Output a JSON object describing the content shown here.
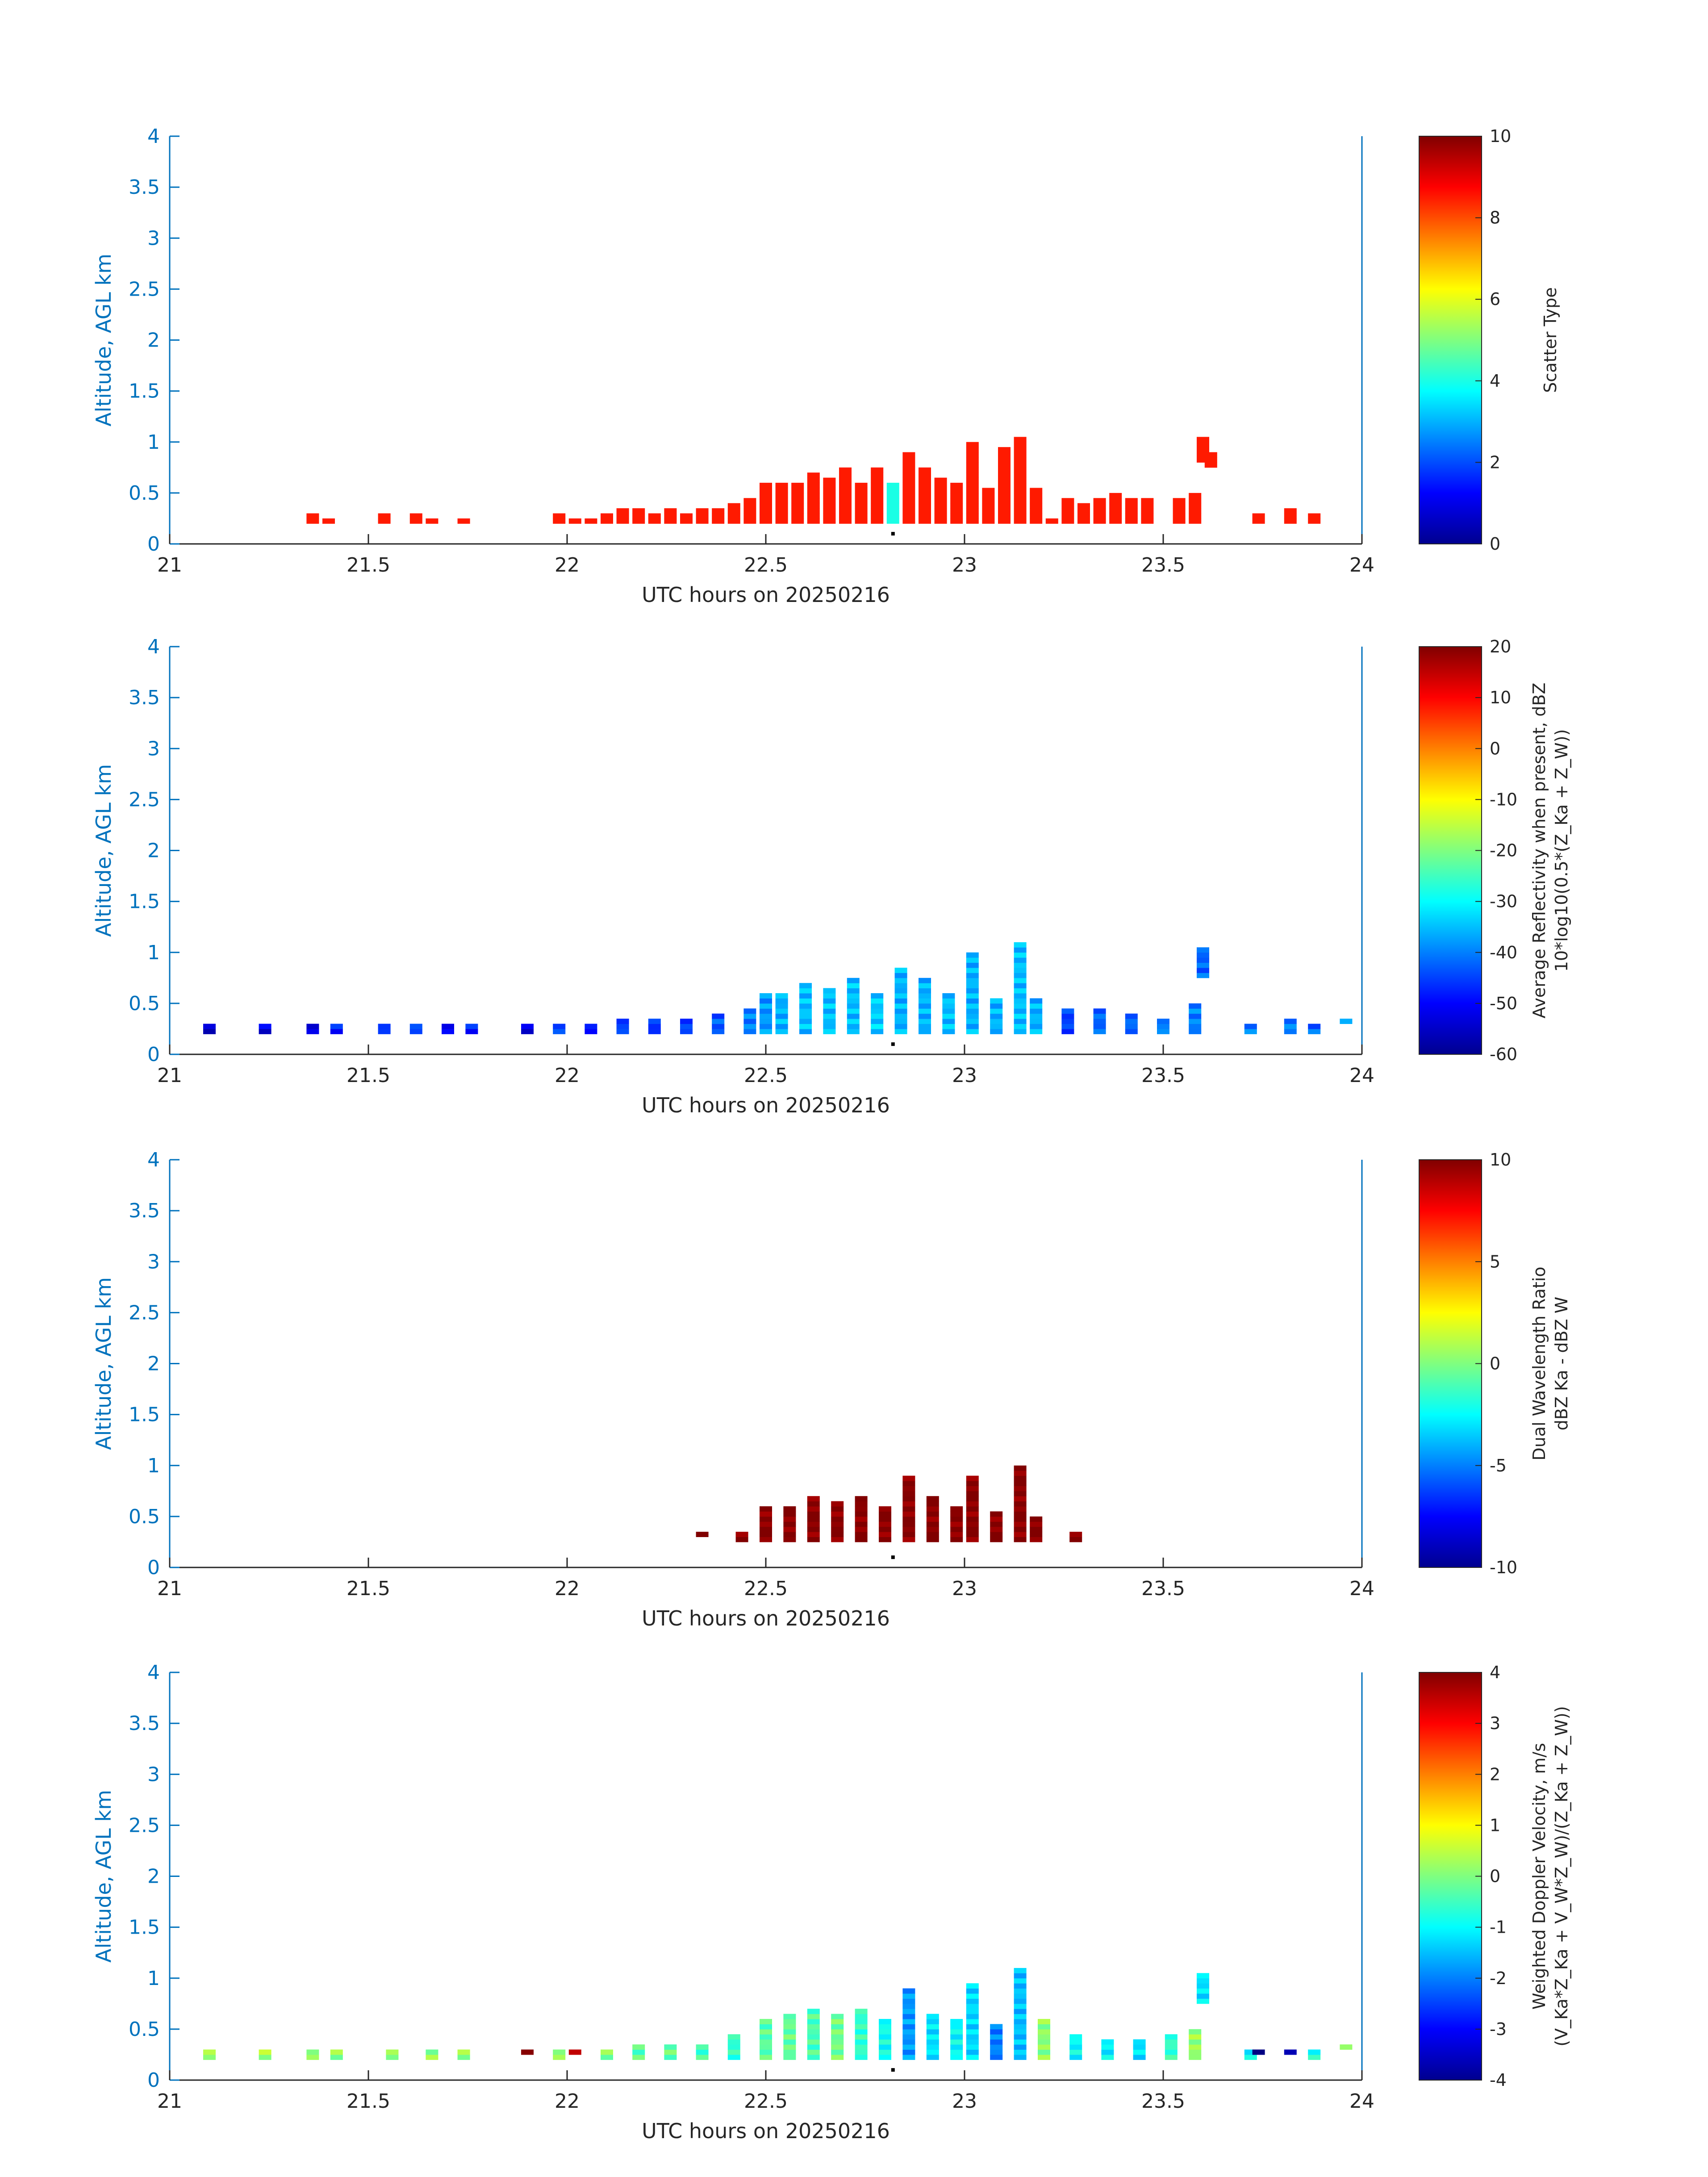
{
  "colors": {
    "axis": "#0072bd",
    "text": "#262626",
    "frame": "#0072bd"
  },
  "chart_data": [
    {
      "type": "heatmap",
      "name": "scatter-type",
      "xlabel": "UTC hours on 20250216",
      "ylabel": "Altitude, AGL km",
      "xlim": [
        21,
        24
      ],
      "ylim": [
        0,
        4
      ],
      "xticks": [
        "21",
        "21.5",
        "22",
        "22.5",
        "23",
        "23.5",
        "24"
      ],
      "yticks": [
        "0",
        "0.5",
        "1",
        "1.5",
        "2",
        "2.5",
        "3",
        "3.5",
        "4"
      ],
      "colorbar": {
        "label": "Scatter Type",
        "ticks": [
          "0",
          "2",
          "4",
          "6",
          "8",
          "10"
        ],
        "range": [
          0,
          10
        ]
      },
      "columns": [
        [
          21.36,
          0.2,
          0.3,
          8.5
        ],
        [
          21.4,
          0.2,
          0.25,
          8.5
        ],
        [
          21.54,
          0.2,
          0.3,
          8.5
        ],
        [
          21.62,
          0.2,
          0.3,
          8.5
        ],
        [
          21.66,
          0.2,
          0.25,
          8.5
        ],
        [
          21.74,
          0.2,
          0.25,
          8.5
        ],
        [
          21.98,
          0.2,
          0.3,
          8.5
        ],
        [
          22.02,
          0.2,
          0.25,
          8.5
        ],
        [
          22.06,
          0.2,
          0.25,
          8.5
        ],
        [
          22.1,
          0.2,
          0.3,
          8.5
        ],
        [
          22.14,
          0.2,
          0.35,
          8.5
        ],
        [
          22.18,
          0.2,
          0.35,
          8.5
        ],
        [
          22.22,
          0.2,
          0.3,
          8.5
        ],
        [
          22.26,
          0.2,
          0.35,
          8.5
        ],
        [
          22.3,
          0.2,
          0.3,
          8.5
        ],
        [
          22.34,
          0.2,
          0.35,
          8.5
        ],
        [
          22.38,
          0.2,
          0.35,
          8.5
        ],
        [
          22.42,
          0.2,
          0.4,
          8.5
        ],
        [
          22.46,
          0.2,
          0.45,
          8.5
        ],
        [
          22.5,
          0.2,
          0.6,
          8.5
        ],
        [
          22.54,
          0.2,
          0.6,
          8.5
        ],
        [
          22.58,
          0.2,
          0.6,
          8.5
        ],
        [
          22.62,
          0.2,
          0.7,
          8.5
        ],
        [
          22.66,
          0.2,
          0.65,
          8.5
        ],
        [
          22.7,
          0.2,
          0.75,
          8.5
        ],
        [
          22.74,
          0.2,
          0.6,
          8.5
        ],
        [
          22.78,
          0.2,
          0.75,
          8.5
        ],
        [
          22.82,
          0.2,
          0.6,
          4.0
        ],
        [
          22.86,
          0.2,
          0.9,
          8.5
        ],
        [
          22.9,
          0.2,
          0.75,
          8.5
        ],
        [
          22.94,
          0.2,
          0.65,
          8.5
        ],
        [
          22.98,
          0.2,
          0.6,
          8.5
        ],
        [
          23.02,
          0.2,
          1.0,
          8.5
        ],
        [
          23.06,
          0.2,
          0.55,
          8.5
        ],
        [
          23.1,
          0.2,
          0.95,
          8.5
        ],
        [
          23.14,
          0.2,
          1.05,
          8.5
        ],
        [
          23.18,
          0.2,
          0.55,
          8.5
        ],
        [
          23.22,
          0.2,
          0.25,
          8.5
        ],
        [
          23.26,
          0.2,
          0.45,
          8.5
        ],
        [
          23.3,
          0.2,
          0.4,
          8.5
        ],
        [
          23.34,
          0.2,
          0.45,
          8.5
        ],
        [
          23.38,
          0.2,
          0.5,
          8.5
        ],
        [
          23.42,
          0.2,
          0.45,
          8.5
        ],
        [
          23.46,
          0.2,
          0.45,
          8.5
        ],
        [
          23.54,
          0.2,
          0.45,
          8.5
        ],
        [
          23.58,
          0.2,
          0.5,
          8.5
        ],
        [
          23.6,
          0.8,
          1.05,
          8.5
        ],
        [
          23.62,
          0.75,
          0.9,
          8.5
        ],
        [
          23.74,
          0.2,
          0.3,
          8.5
        ],
        [
          23.82,
          0.2,
          0.35,
          8.5
        ],
        [
          23.88,
          0.2,
          0.3,
          8.5
        ]
      ]
    },
    {
      "type": "heatmap",
      "name": "average-reflectivity",
      "xlabel": "UTC hours on 20250216",
      "ylabel": "Altitude, AGL km",
      "xlim": [
        21,
        24
      ],
      "ylim": [
        0,
        4
      ],
      "xticks": [
        "21",
        "21.5",
        "22",
        "22.5",
        "23",
        "23.5",
        "24"
      ],
      "yticks": [
        "0",
        "0.5",
        "1",
        "1.5",
        "2",
        "2.5",
        "3",
        "3.5",
        "4"
      ],
      "colorbar": {
        "label": "Average Reflectivity when present, dBZ",
        "label2": "10*log10(0.5*(Z_Ka + Z_W))",
        "ticks": [
          "-60",
          "-50",
          "-40",
          "-30",
          "-20",
          "-10",
          "0",
          "10",
          "20"
        ],
        "range": [
          -60,
          20
        ]
      },
      "columns": [
        [
          21.1,
          0.2,
          0.3,
          -55
        ],
        [
          21.24,
          0.2,
          0.3,
          -52
        ],
        [
          21.36,
          0.2,
          0.3,
          -52
        ],
        [
          21.42,
          0.2,
          0.3,
          -48
        ],
        [
          21.54,
          0.2,
          0.3,
          -45
        ],
        [
          21.62,
          0.2,
          0.3,
          -45
        ],
        [
          21.7,
          0.2,
          0.3,
          -50
        ],
        [
          21.76,
          0.2,
          0.3,
          -48
        ],
        [
          21.9,
          0.2,
          0.3,
          -52
        ],
        [
          21.98,
          0.2,
          0.3,
          -45
        ],
        [
          22.06,
          0.2,
          0.3,
          -48
        ],
        [
          22.14,
          0.2,
          0.35,
          -45
        ],
        [
          22.22,
          0.2,
          0.35,
          -46
        ],
        [
          22.3,
          0.2,
          0.35,
          -45
        ],
        [
          22.38,
          0.2,
          0.4,
          -43
        ],
        [
          22.46,
          0.2,
          0.45,
          -40
        ],
        [
          22.5,
          0.2,
          0.6,
          -38
        ],
        [
          22.54,
          0.2,
          0.6,
          -36
        ],
        [
          22.6,
          0.2,
          0.7,
          -35
        ],
        [
          22.66,
          0.2,
          0.65,
          -35
        ],
        [
          22.72,
          0.2,
          0.75,
          -35
        ],
        [
          22.78,
          0.2,
          0.6,
          -34
        ],
        [
          22.84,
          0.2,
          0.85,
          -36
        ],
        [
          22.9,
          0.2,
          0.75,
          -36
        ],
        [
          22.96,
          0.2,
          0.6,
          -35
        ],
        [
          23.02,
          0.2,
          1.0,
          -36
        ],
        [
          23.08,
          0.2,
          0.55,
          -36
        ],
        [
          23.14,
          0.2,
          1.1,
          -35
        ],
        [
          23.18,
          0.2,
          0.55,
          -36
        ],
        [
          23.26,
          0.2,
          0.45,
          -45
        ],
        [
          23.34,
          0.2,
          0.45,
          -42
        ],
        [
          23.42,
          0.2,
          0.4,
          -42
        ],
        [
          23.5,
          0.2,
          0.35,
          -40
        ],
        [
          23.58,
          0.2,
          0.5,
          -40
        ],
        [
          23.6,
          0.75,
          1.05,
          -42
        ],
        [
          23.72,
          0.2,
          0.3,
          -40
        ],
        [
          23.82,
          0.2,
          0.35,
          -40
        ],
        [
          23.88,
          0.2,
          0.3,
          -42
        ],
        [
          23.96,
          0.3,
          0.35,
          -34
        ]
      ]
    },
    {
      "type": "heatmap",
      "name": "dual-wavelength-ratio",
      "xlabel": "UTC hours on 20250216",
      "ylabel": "Altitude, AGL km",
      "xlim": [
        21,
        24
      ],
      "ylim": [
        0,
        4
      ],
      "xticks": [
        "21",
        "21.5",
        "22",
        "22.5",
        "23",
        "23.5",
        "24"
      ],
      "yticks": [
        "0",
        "0.5",
        "1",
        "1.5",
        "2",
        "2.5",
        "3",
        "3.5",
        "4"
      ],
      "colorbar": {
        "label": "Dual Wavelength Ratio",
        "label2": "dBZ Ka - dBZ W",
        "ticks": [
          "-10",
          "-5",
          "0",
          "5",
          "10"
        ],
        "range": [
          -10,
          10
        ]
      },
      "columns": [
        [
          22.34,
          0.3,
          0.35,
          10
        ],
        [
          22.44,
          0.25,
          0.35,
          10
        ],
        [
          22.5,
          0.25,
          0.6,
          10
        ],
        [
          22.56,
          0.25,
          0.6,
          10
        ],
        [
          22.62,
          0.25,
          0.7,
          10
        ],
        [
          22.68,
          0.25,
          0.65,
          10
        ],
        [
          22.74,
          0.25,
          0.7,
          10
        ],
        [
          22.8,
          0.25,
          0.6,
          10
        ],
        [
          22.86,
          0.25,
          0.9,
          10
        ],
        [
          22.92,
          0.25,
          0.7,
          10
        ],
        [
          22.98,
          0.25,
          0.6,
          10
        ],
        [
          23.02,
          0.25,
          0.9,
          10
        ],
        [
          23.08,
          0.25,
          0.55,
          10
        ],
        [
          23.14,
          0.25,
          1.0,
          10
        ],
        [
          23.18,
          0.25,
          0.5,
          10
        ],
        [
          23.28,
          0.25,
          0.35,
          10
        ]
      ]
    },
    {
      "type": "heatmap",
      "name": "weighted-doppler-velocity",
      "xlabel": "UTC hours on 20250216",
      "ylabel": "Altitude, AGL km",
      "xlim": [
        21,
        24
      ],
      "ylim": [
        0,
        4
      ],
      "xticks": [
        "21",
        "21.5",
        "22",
        "22.5",
        "23",
        "23.5",
        "24"
      ],
      "yticks": [
        "0",
        "0.5",
        "1",
        "1.5",
        "2",
        "2.5",
        "3",
        "3.5",
        "4"
      ],
      "colorbar": {
        "label": "Weighted Doppler Velocity, m/s",
        "label2": "(V_Ka*Z_Ka + V_W*Z_W)/(Z_Ka + Z_W))",
        "ticks": [
          "-4",
          "-3",
          "-2",
          "-1",
          "0",
          "1",
          "2",
          "3",
          "4"
        ],
        "range": [
          -4,
          4
        ]
      },
      "columns": [
        [
          21.1,
          0.2,
          0.3,
          0.2
        ],
        [
          21.24,
          0.2,
          0.3,
          0.3
        ],
        [
          21.36,
          0.2,
          0.3,
          0.2
        ],
        [
          21.42,
          0.2,
          0.3,
          0.1
        ],
        [
          21.56,
          0.2,
          0.3,
          0.2
        ],
        [
          21.66,
          0.2,
          0.3,
          0.1
        ],
        [
          21.74,
          0.2,
          0.3,
          0.2
        ],
        [
          21.9,
          0.25,
          0.3,
          3.8
        ],
        [
          21.98,
          0.2,
          0.3,
          0.1
        ],
        [
          22.02,
          0.25,
          0.3,
          3.8
        ],
        [
          22.1,
          0.2,
          0.3,
          0.0
        ],
        [
          22.18,
          0.2,
          0.35,
          -0.3
        ],
        [
          22.26,
          0.2,
          0.35,
          -0.2
        ],
        [
          22.34,
          0.2,
          0.35,
          -0.5
        ],
        [
          22.42,
          0.2,
          0.45,
          -0.6
        ],
        [
          22.5,
          0.2,
          0.6,
          -0.3
        ],
        [
          22.56,
          0.2,
          0.65,
          -0.2
        ],
        [
          22.62,
          0.2,
          0.7,
          -0.4
        ],
        [
          22.68,
          0.2,
          0.65,
          -0.1
        ],
        [
          22.74,
          0.2,
          0.7,
          -0.6
        ],
        [
          22.8,
          0.2,
          0.6,
          -0.9
        ],
        [
          22.86,
          0.2,
          0.9,
          -1.8
        ],
        [
          22.92,
          0.2,
          0.65,
          -1.2
        ],
        [
          22.98,
          0.2,
          0.6,
          -1.0
        ],
        [
          23.02,
          0.2,
          0.95,
          -1.3
        ],
        [
          23.08,
          0.2,
          0.55,
          -2.0
        ],
        [
          23.14,
          0.2,
          1.1,
          -1.5
        ],
        [
          23.2,
          0.2,
          0.6,
          0.1
        ],
        [
          23.28,
          0.2,
          0.45,
          -1.0
        ],
        [
          23.36,
          0.2,
          0.4,
          -1.1
        ],
        [
          23.44,
          0.2,
          0.4,
          -1.2
        ],
        [
          23.52,
          0.2,
          0.45,
          -0.6
        ],
        [
          23.58,
          0.2,
          0.5,
          0.2
        ],
        [
          23.6,
          0.75,
          1.05,
          -1.2
        ],
        [
          23.72,
          0.2,
          0.3,
          -1.0
        ],
        [
          23.74,
          0.25,
          0.3,
          -3.8
        ],
        [
          23.82,
          0.25,
          0.3,
          -3.8
        ],
        [
          23.88,
          0.2,
          0.3,
          -0.8
        ],
        [
          23.96,
          0.3,
          0.35,
          0.4
        ]
      ]
    }
  ]
}
